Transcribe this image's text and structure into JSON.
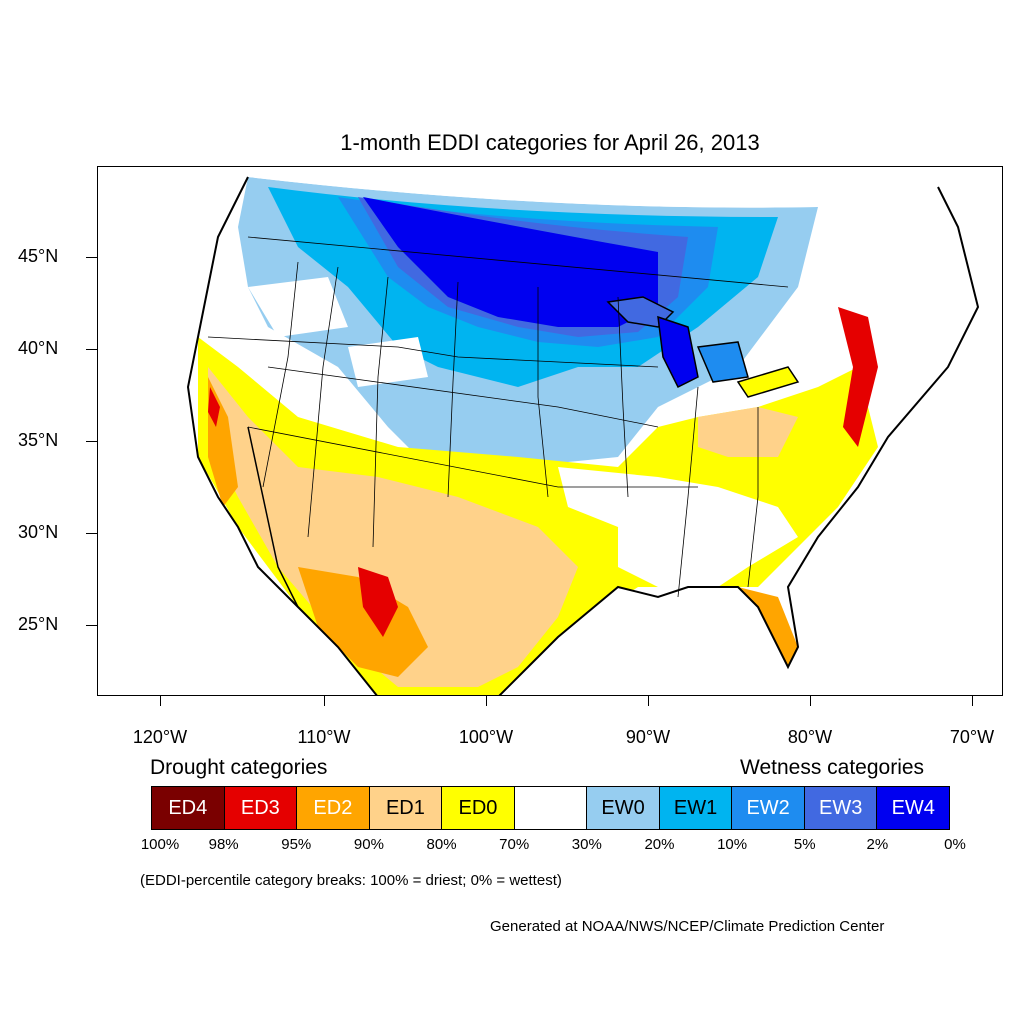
{
  "title": "1-month EDDI categories for April 26, 2013",
  "lat_labels": [
    "45°N",
    "40°N",
    "35°N",
    "30°N",
    "25°N"
  ],
  "lon_labels": [
    "120°W",
    "110°W",
    "100°W",
    "90°W",
    "80°W",
    "70°W"
  ],
  "legend": {
    "drought_heading": "Drought categories",
    "wetness_heading": "Wetness categories",
    "categories": [
      {
        "label": "ED4",
        "color": "#7a0000",
        "text_color": "#ffffff"
      },
      {
        "label": "ED3",
        "color": "#e50000",
        "text_color": "#ffffff"
      },
      {
        "label": "ED2",
        "color": "#ffa500",
        "text_color": "#ffffff"
      },
      {
        "label": "ED1",
        "color": "#ffd28a",
        "text_color": "#000000"
      },
      {
        "label": "ED0",
        "color": "#ffff00",
        "text_color": "#000000"
      },
      {
        "label": "",
        "color": "#ffffff",
        "text_color": "#000000"
      },
      {
        "label": "EW0",
        "color": "#96cdf0",
        "text_color": "#000000"
      },
      {
        "label": "EW1",
        "color": "#00b4f0",
        "text_color": "#000000"
      },
      {
        "label": "EW2",
        "color": "#1e8cf0",
        "text_color": "#ffffff"
      },
      {
        "label": "EW3",
        "color": "#4169e1",
        "text_color": "#ffffff"
      },
      {
        "label": "EW4",
        "color": "#0000f0",
        "text_color": "#ffffff"
      }
    ],
    "percent_breaks": [
      "100%",
      "98%",
      "95%",
      "90%",
      "80%",
      "70%",
      "30%",
      "20%",
      "10%",
      "5%",
      "2%",
      "0%"
    ]
  },
  "note": "(EDDI-percentile category breaks: 100% = driest; 0% = wettest)",
  "credit": "Generated at NOAA/NWS/NCEP/Climate Prediction Center"
}
